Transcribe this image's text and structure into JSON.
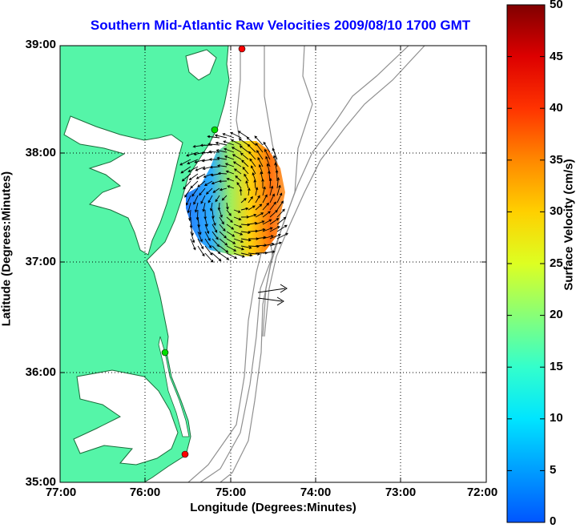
{
  "title": "Southern Mid-Atlantic Raw Velocities 2009/08/10 1700 GMT",
  "x_axis": {
    "label": "Longitude (Degrees:Minutes)",
    "ticks": [
      "77:00",
      "76:00",
      "75:00",
      "74:00",
      "73:00",
      "72:00"
    ]
  },
  "y_axis": {
    "label": "Latitude (Degrees:Minutes)",
    "ticks": [
      "39:00",
      "38:00",
      "37:00",
      "36:00",
      "35:00"
    ]
  },
  "colorbar": {
    "label": "Surface Velocity (cm/s)",
    "ticks": [
      "50",
      "45",
      "40",
      "35",
      "30",
      "25",
      "20",
      "15",
      "10",
      "5",
      "0"
    ],
    "min": 0,
    "max": 50
  },
  "legend_arrow": {
    "name": "reference-vector"
  },
  "stations": [
    {
      "name": "station-1",
      "color": "#ff0000"
    },
    {
      "name": "station-2",
      "color": "#00dd00"
    },
    {
      "name": "station-3",
      "color": "#00dd00"
    },
    {
      "name": "station-4",
      "color": "#ff0000"
    }
  ],
  "colors": {
    "land": "#55f5a8",
    "coast": "#1a6b3a",
    "bathymetry": "#909090",
    "grid": "#000000",
    "title": "#0000ff"
  }
}
